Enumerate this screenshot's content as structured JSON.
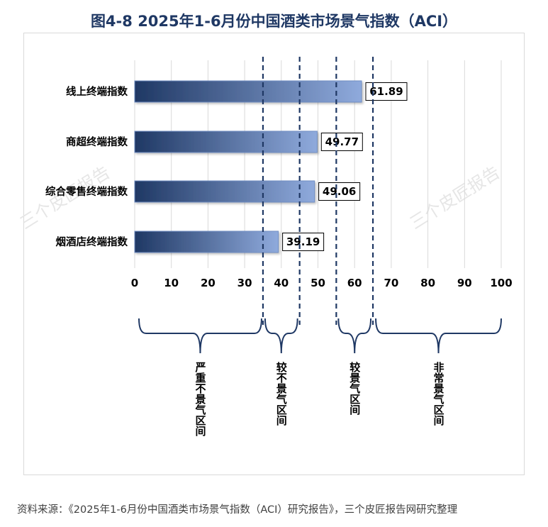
{
  "title": "图4-8 2025年1-6月份中国酒类市场景气指数（ACI）",
  "source": "资料来源：《2025年1-6月份中国酒类市场景气指数（ACI）研究报告》，三个皮匠报告网研究整理",
  "watermark": "三个皮匠报告",
  "colors": {
    "bar_dark": "#1f3864",
    "bar_light": "#8faadc",
    "title": "#1f3864",
    "divider": "#1f3864"
  },
  "zones": [
    {
      "label": "严重不景气区间"
    },
    {
      "label": "较不景气区间"
    },
    {
      "label": "较景气区间"
    },
    {
      "label": "非常景气区间"
    }
  ],
  "chart_data": {
    "type": "bar",
    "orientation": "horizontal",
    "categories": [
      "线上终端指数",
      "商超终端指数",
      "综合零售终端指数",
      "烟酒店终端指数"
    ],
    "values": [
      61.89,
      49.77,
      49.06,
      39.19
    ],
    "value_labels": [
      "61.89",
      "49.77",
      "49.06",
      "39.19"
    ],
    "xlim": [
      0,
      100
    ],
    "xticks": [
      0,
      10,
      20,
      30,
      40,
      50,
      60,
      70,
      80,
      90,
      100
    ],
    "zone_boundaries": [
      35,
      45,
      55,
      65
    ],
    "grid": "vertical",
    "legend": "none"
  }
}
